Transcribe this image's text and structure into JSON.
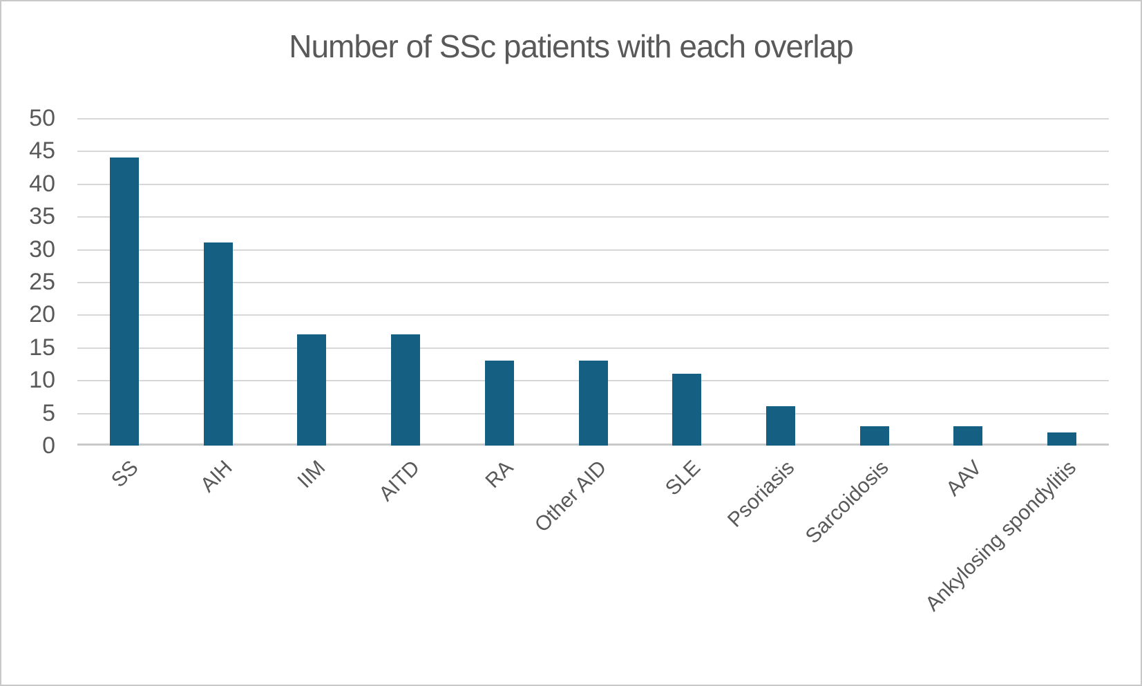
{
  "chart_data": {
    "type": "bar",
    "title": "Number of SSc patients with each overlap",
    "categories": [
      "SS",
      "AIH",
      "IIM",
      "AITD",
      "RA",
      "Other AID",
      "SLE",
      "Psoriasis",
      "Sarcoidosis",
      "AAV",
      "Ankylosing spondylitis"
    ],
    "values": [
      44,
      31,
      17,
      17,
      13,
      13,
      11,
      6,
      3,
      3,
      2
    ],
    "xlabel": "",
    "ylabel": "",
    "ylim": [
      0,
      50
    ],
    "yticks": [
      0,
      5,
      10,
      15,
      20,
      25,
      30,
      35,
      40,
      45,
      50
    ],
    "grid": "horizontal",
    "legend": "none",
    "colors": {
      "bar": "#156082",
      "title_text": "#595959",
      "axis_text": "#595959",
      "gridline": "#d7d7d7",
      "axis_line": "#c9c9c9",
      "background": "#ffffff",
      "border": "#c8c8c8"
    }
  }
}
